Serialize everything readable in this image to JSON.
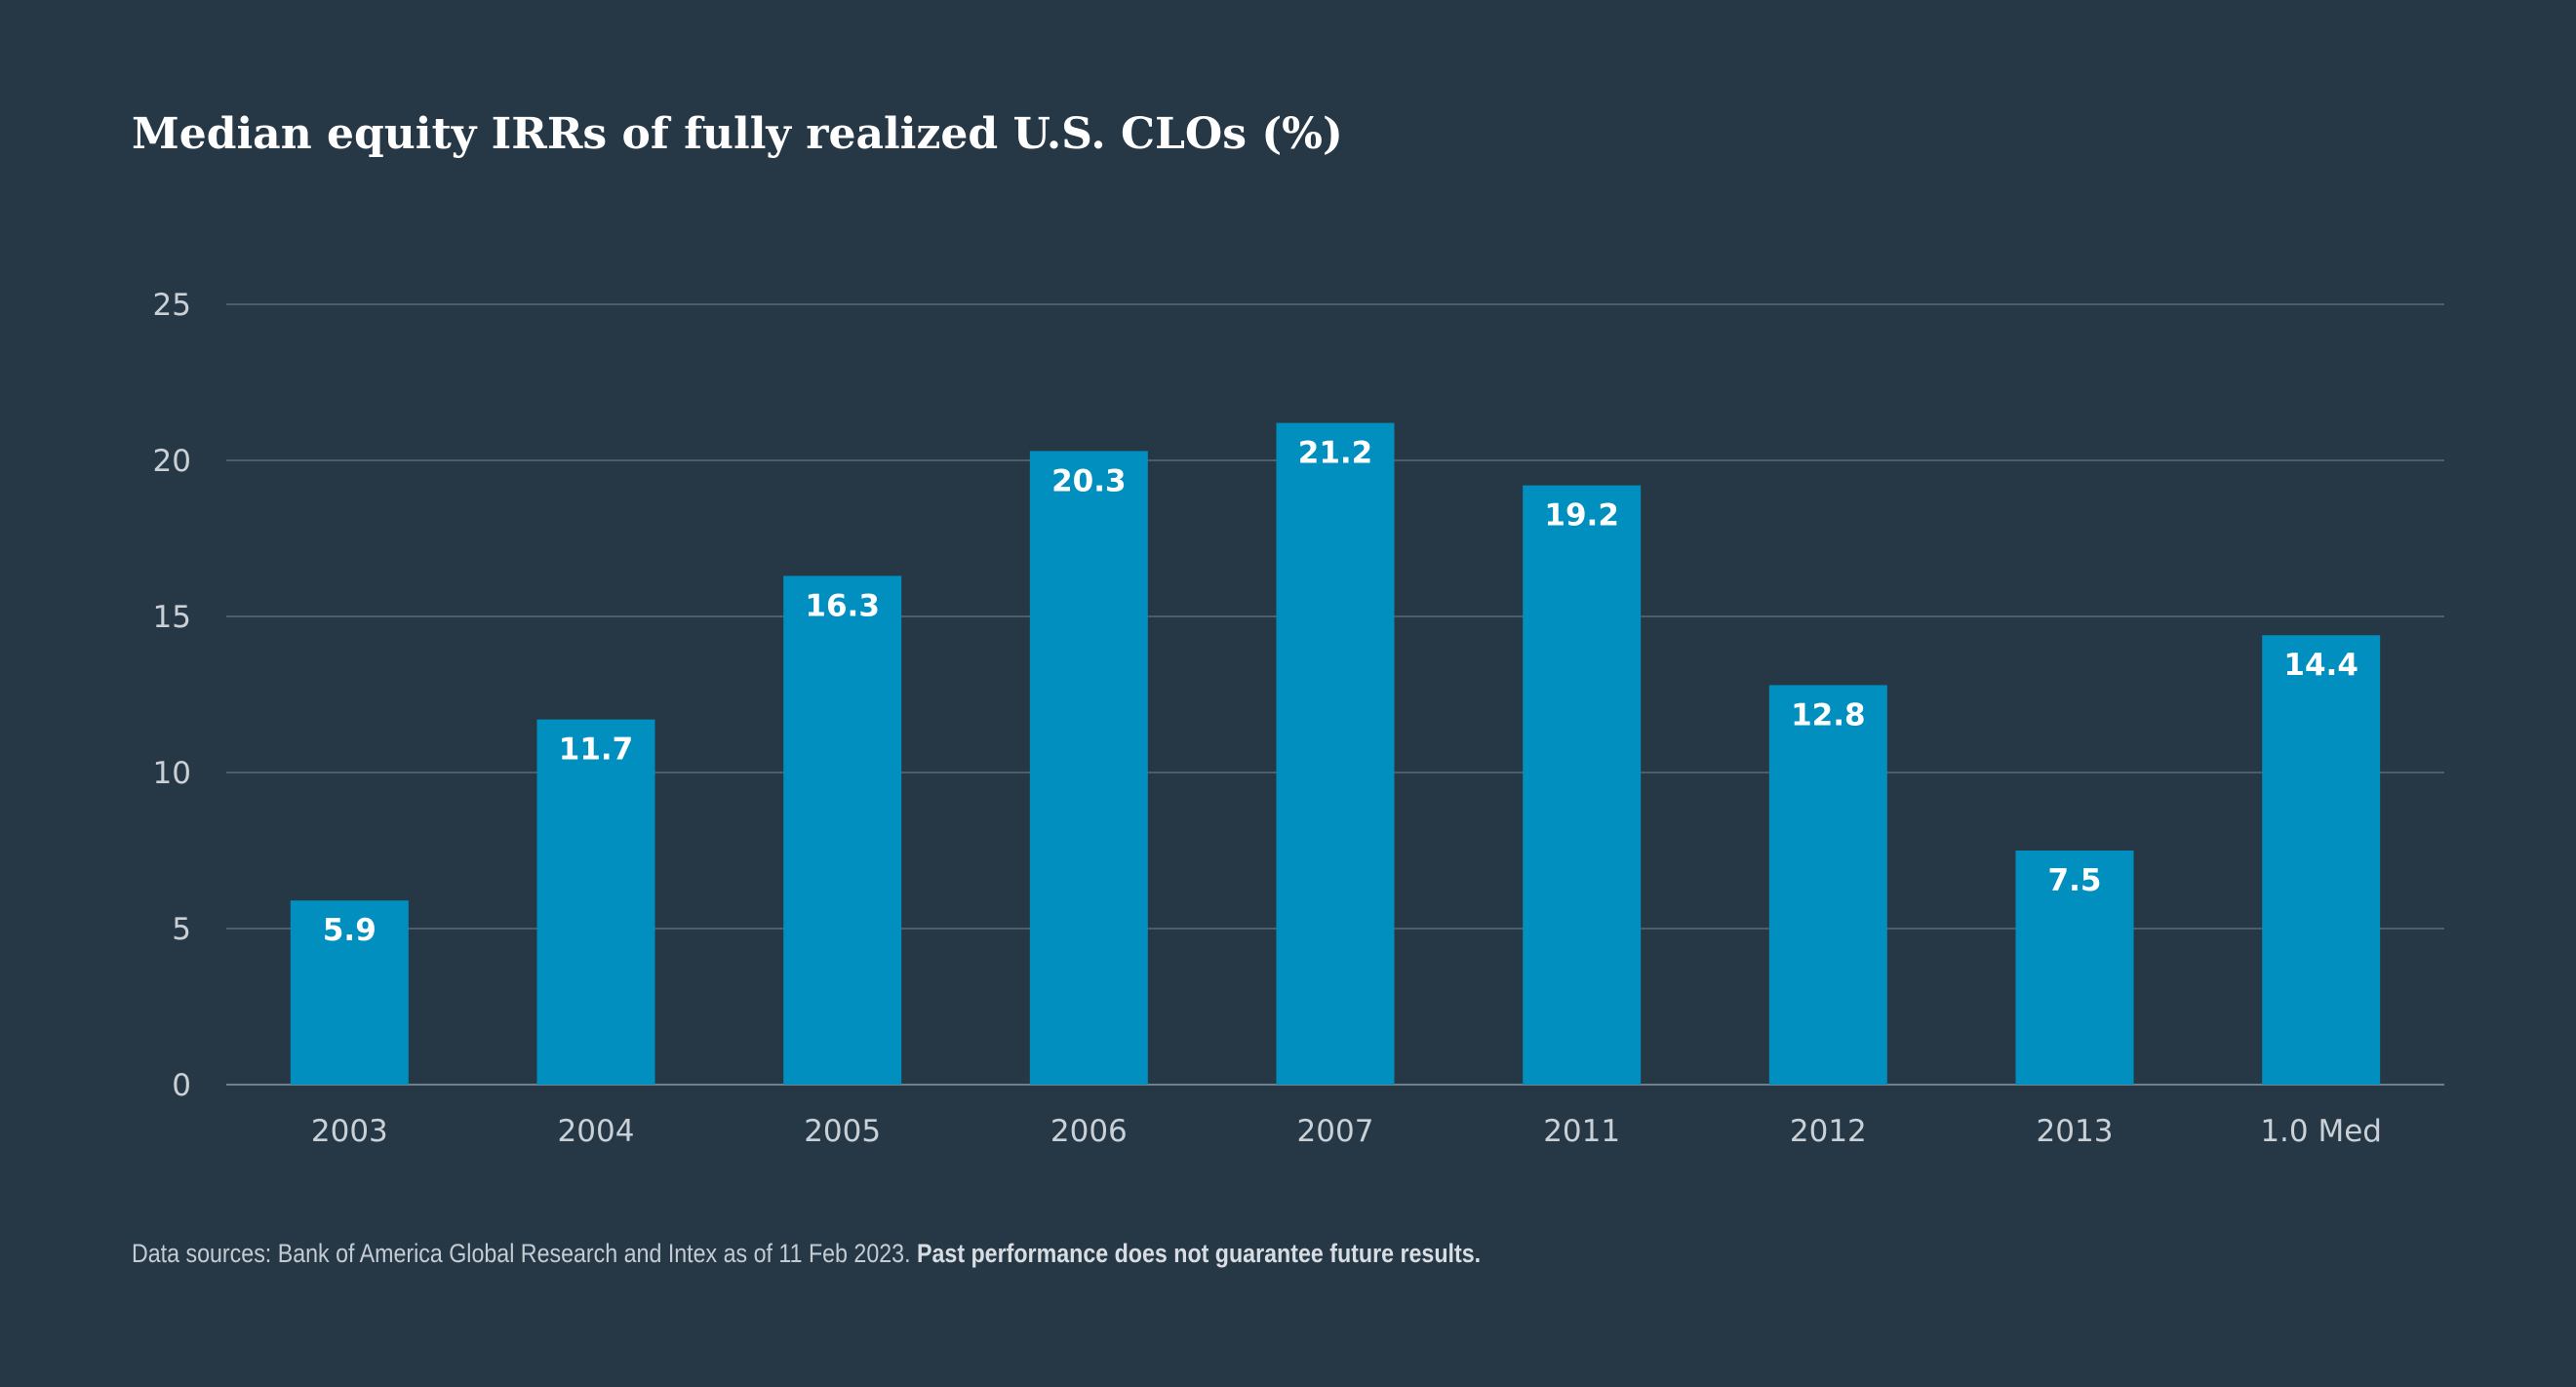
{
  "chart_data": {
    "type": "bar",
    "title": "Median equity IRRs of fully realized U.S. CLOs (%)",
    "categories": [
      "2003",
      "2004",
      "2005",
      "2006",
      "2007",
      "2011",
      "2012",
      "2013",
      "1.0 Med"
    ],
    "values": [
      5.9,
      11.7,
      16.3,
      20.3,
      21.2,
      19.2,
      12.8,
      7.5,
      14.4
    ],
    "data_labels": [
      "5.9",
      "11.7",
      "16.3",
      "20.3",
      "21.2",
      "19.2",
      "12.8",
      "7.5",
      "14.4"
    ],
    "ylim": [
      0,
      25
    ],
    "yticks": [
      0,
      5,
      10,
      15,
      20,
      25
    ],
    "xlabel": "",
    "ylabel": "",
    "grid": true,
    "legend": "none"
  },
  "footer": {
    "source": "Data sources: Bank of America Global Research and Intex as of 11 Feb 2023.",
    "disclaimer": "Past performance does not guarantee future results."
  },
  "colors": {
    "background": "#263746",
    "bar": "#008fbf",
    "grid": "#5a6a78",
    "text": "#ffffff"
  }
}
